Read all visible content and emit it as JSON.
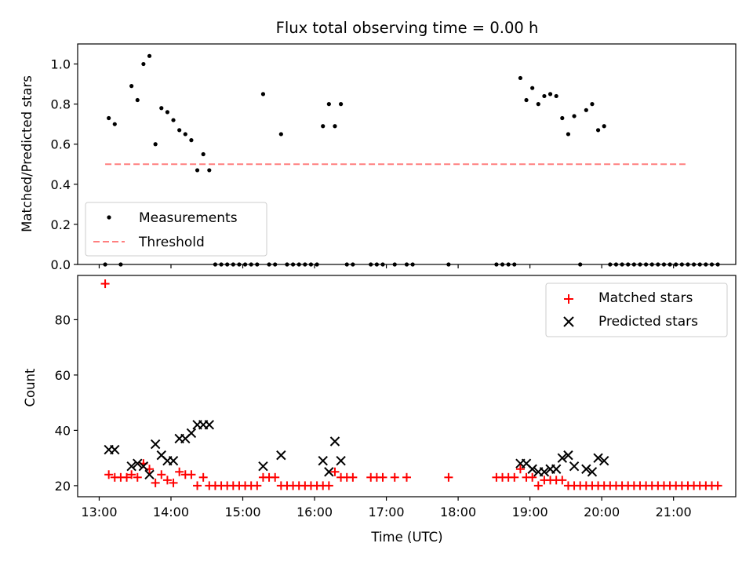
{
  "chart_data": [
    {
      "type": "scatter",
      "title": "Flux total observing time = 0.00 h",
      "xlabel": "",
      "ylabel": "Matched/Predicted stars",
      "ylim": [
        0,
        1.1
      ],
      "yticks": [
        0.0,
        0.2,
        0.4,
        0.6,
        0.8,
        1.0
      ],
      "ytick_labels": [
        "0.0",
        "0.2",
        "0.4",
        "0.6",
        "0.8",
        "1.0"
      ],
      "legend": {
        "placement": "lower-left",
        "entries": [
          "Measurements",
          "Threshold"
        ]
      },
      "colors": {
        "measurements": "#000000",
        "threshold": "#ff7f7f"
      },
      "threshold": {
        "x": [
          "13:05",
          "21:10"
        ],
        "y": 0.5
      },
      "series": [
        {
          "name": "Measurements",
          "points": [
            [
              "13:05",
              0.0
            ],
            [
              "13:08",
              0.73
            ],
            [
              "13:13",
              0.7
            ],
            [
              "13:18",
              0.0
            ],
            [
              "13:27",
              0.89
            ],
            [
              "13:32",
              0.82
            ],
            [
              "13:37",
              1.0
            ],
            [
              "13:42",
              1.04
            ],
            [
              "13:47",
              0.6
            ],
            [
              "13:52",
              0.78
            ],
            [
              "13:57",
              0.76
            ],
            [
              "14:02",
              0.72
            ],
            [
              "14:07",
              0.67
            ],
            [
              "14:12",
              0.65
            ],
            [
              "14:17",
              0.62
            ],
            [
              "14:22",
              0.47
            ],
            [
              "14:27",
              0.55
            ],
            [
              "14:32",
              0.47
            ],
            [
              "14:37",
              0.0
            ],
            [
              "14:42",
              0.0
            ],
            [
              "14:47",
              0.0
            ],
            [
              "14:52",
              0.0
            ],
            [
              "14:57",
              0.0
            ],
            [
              "15:02",
              0.0
            ],
            [
              "15:07",
              0.0
            ],
            [
              "15:12",
              0.0
            ],
            [
              "15:17",
              0.85
            ],
            [
              "15:22",
              0.0
            ],
            [
              "15:27",
              0.0
            ],
            [
              "15:32",
              0.65
            ],
            [
              "15:37",
              0.0
            ],
            [
              "15:42",
              0.0
            ],
            [
              "15:47",
              0.0
            ],
            [
              "15:52",
              0.0
            ],
            [
              "15:57",
              0.0
            ],
            [
              "16:02",
              0.0
            ],
            [
              "16:07",
              0.69
            ],
            [
              "16:12",
              0.8
            ],
            [
              "16:17",
              0.69
            ],
            [
              "16:22",
              0.8
            ],
            [
              "16:27",
              0.0
            ],
            [
              "16:32",
              0.0
            ],
            [
              "16:47",
              0.0
            ],
            [
              "16:52",
              0.0
            ],
            [
              "16:57",
              0.0
            ],
            [
              "17:07",
              0.0
            ],
            [
              "17:17",
              0.0
            ],
            [
              "17:22",
              0.0
            ],
            [
              "17:52",
              0.0
            ],
            [
              "18:32",
              0.0
            ],
            [
              "18:37",
              0.0
            ],
            [
              "18:42",
              0.0
            ],
            [
              "18:47",
              0.0
            ],
            [
              "18:52",
              0.93
            ],
            [
              "18:57",
              0.82
            ],
            [
              "19:02",
              0.88
            ],
            [
              "19:07",
              0.8
            ],
            [
              "19:12",
              0.84
            ],
            [
              "19:17",
              0.85
            ],
            [
              "19:22",
              0.84
            ],
            [
              "19:27",
              0.73
            ],
            [
              "19:32",
              0.65
            ],
            [
              "19:37",
              0.74
            ],
            [
              "19:42",
              0.0
            ],
            [
              "19:47",
              0.77
            ],
            [
              "19:52",
              0.8
            ],
            [
              "19:57",
              0.67
            ],
            [
              "20:02",
              0.69
            ],
            [
              "20:07",
              0.0
            ],
            [
              "20:12",
              0.0
            ],
            [
              "20:17",
              0.0
            ],
            [
              "20:22",
              0.0
            ],
            [
              "20:27",
              0.0
            ],
            [
              "20:32",
              0.0
            ],
            [
              "20:37",
              0.0
            ],
            [
              "20:42",
              0.0
            ],
            [
              "20:47",
              0.0
            ],
            [
              "20:52",
              0.0
            ],
            [
              "20:57",
              0.0
            ],
            [
              "21:02",
              0.0
            ],
            [
              "21:07",
              0.0
            ],
            [
              "21:12",
              0.0
            ],
            [
              "21:17",
              0.0
            ],
            [
              "21:22",
              0.0
            ],
            [
              "21:27",
              0.0
            ],
            [
              "21:32",
              0.0
            ],
            [
              "21:37",
              0.0
            ]
          ]
        }
      ]
    },
    {
      "type": "scatter",
      "title": "",
      "xlabel": "Time (UTC)",
      "ylabel": "Count",
      "ylim": [
        16,
        96
      ],
      "yticks": [
        20,
        40,
        60,
        80
      ],
      "ytick_labels": [
        "20",
        "40",
        "60",
        "80"
      ],
      "xlim": [
        "12:42",
        "21:52"
      ],
      "xticks": [
        "13:00",
        "14:00",
        "15:00",
        "16:00",
        "17:00",
        "18:00",
        "19:00",
        "20:00",
        "21:00"
      ],
      "xtick_labels": [
        "13:00",
        "14:00",
        "15:00",
        "16:00",
        "17:00",
        "18:00",
        "19:00",
        "20:00",
        "21:00"
      ],
      "legend": {
        "placement": "top-right",
        "entries": [
          "Matched stars",
          "Predicted stars"
        ]
      },
      "colors": {
        "matched": "#ff0000",
        "predicted": "#000000"
      },
      "series": [
        {
          "name": "Matched stars",
          "marker": "plus",
          "points": [
            [
              "13:05",
              93
            ],
            [
              "13:08",
              24
            ],
            [
              "13:13",
              23
            ],
            [
              "13:18",
              23
            ],
            [
              "13:23",
              23
            ],
            [
              "13:27",
              24
            ],
            [
              "13:32",
              23
            ],
            [
              "13:37",
              28
            ],
            [
              "13:42",
              26
            ],
            [
              "13:47",
              21
            ],
            [
              "13:52",
              24
            ],
            [
              "13:57",
              22
            ],
            [
              "14:02",
              21
            ],
            [
              "14:07",
              25
            ],
            [
              "14:12",
              24
            ],
            [
              "14:17",
              24
            ],
            [
              "14:22",
              20
            ],
            [
              "14:27",
              23
            ],
            [
              "14:32",
              20
            ],
            [
              "14:37",
              20
            ],
            [
              "14:42",
              20
            ],
            [
              "14:47",
              20
            ],
            [
              "14:52",
              20
            ],
            [
              "14:57",
              20
            ],
            [
              "15:02",
              20
            ],
            [
              "15:07",
              20
            ],
            [
              "15:12",
              20
            ],
            [
              "15:17",
              23
            ],
            [
              "15:22",
              23
            ],
            [
              "15:27",
              23
            ],
            [
              "15:32",
              20
            ],
            [
              "15:37",
              20
            ],
            [
              "15:42",
              20
            ],
            [
              "15:47",
              20
            ],
            [
              "15:52",
              20
            ],
            [
              "15:57",
              20
            ],
            [
              "16:02",
              20
            ],
            [
              "16:07",
              20
            ],
            [
              "16:12",
              20
            ],
            [
              "16:17",
              25
            ],
            [
              "16:22",
              23
            ],
            [
              "16:27",
              23
            ],
            [
              "16:32",
              23
            ],
            [
              "16:47",
              23
            ],
            [
              "16:52",
              23
            ],
            [
              "16:57",
              23
            ],
            [
              "17:07",
              23
            ],
            [
              "17:17",
              23
            ],
            [
              "17:52",
              23
            ],
            [
              "18:32",
              23
            ],
            [
              "18:37",
              23
            ],
            [
              "18:42",
              23
            ],
            [
              "18:47",
              23
            ],
            [
              "18:52",
              26
            ],
            [
              "18:57",
              23
            ],
            [
              "19:02",
              23
            ],
            [
              "19:07",
              20
            ],
            [
              "19:12",
              22
            ],
            [
              "19:17",
              22
            ],
            [
              "19:22",
              22
            ],
            [
              "19:27",
              22
            ],
            [
              "19:32",
              20
            ],
            [
              "19:37",
              20
            ],
            [
              "19:42",
              20
            ],
            [
              "19:47",
              20
            ],
            [
              "19:52",
              20
            ],
            [
              "19:57",
              20
            ],
            [
              "20:02",
              20
            ],
            [
              "20:07",
              20
            ],
            [
              "20:12",
              20
            ],
            [
              "20:17",
              20
            ],
            [
              "20:22",
              20
            ],
            [
              "20:27",
              20
            ],
            [
              "20:32",
              20
            ],
            [
              "20:37",
              20
            ],
            [
              "20:42",
              20
            ],
            [
              "20:47",
              20
            ],
            [
              "20:52",
              20
            ],
            [
              "20:57",
              20
            ],
            [
              "21:02",
              20
            ],
            [
              "21:07",
              20
            ],
            [
              "21:12",
              20
            ],
            [
              "21:17",
              20
            ],
            [
              "21:22",
              20
            ],
            [
              "21:27",
              20
            ],
            [
              "21:32",
              20
            ],
            [
              "21:37",
              20
            ]
          ]
        },
        {
          "name": "Predicted stars",
          "marker": "x",
          "points": [
            [
              "13:08",
              33
            ],
            [
              "13:13",
              33
            ],
            [
              "13:27",
              27
            ],
            [
              "13:32",
              28
            ],
            [
              "13:37",
              27
            ],
            [
              "13:42",
              24
            ],
            [
              "13:47",
              35
            ],
            [
              "13:52",
              31
            ],
            [
              "13:57",
              29
            ],
            [
              "14:02",
              29
            ],
            [
              "14:07",
              37
            ],
            [
              "14:12",
              37
            ],
            [
              "14:17",
              39
            ],
            [
              "14:22",
              42
            ],
            [
              "14:27",
              42
            ],
            [
              "14:32",
              42
            ],
            [
              "15:17",
              27
            ],
            [
              "15:32",
              31
            ],
            [
              "16:07",
              29
            ],
            [
              "16:12",
              25
            ],
            [
              "16:17",
              36
            ],
            [
              "16:22",
              29
            ],
            [
              "18:52",
              28
            ],
            [
              "18:57",
              28
            ],
            [
              "19:02",
              26
            ],
            [
              "19:07",
              25
            ],
            [
              "19:12",
              25
            ],
            [
              "19:17",
              26
            ],
            [
              "19:22",
              26
            ],
            [
              "19:27",
              30
            ],
            [
              "19:32",
              31
            ],
            [
              "19:37",
              27
            ],
            [
              "19:47",
              26
            ],
            [
              "19:52",
              25
            ],
            [
              "19:57",
              30
            ],
            [
              "20:02",
              29
            ]
          ]
        }
      ]
    }
  ]
}
